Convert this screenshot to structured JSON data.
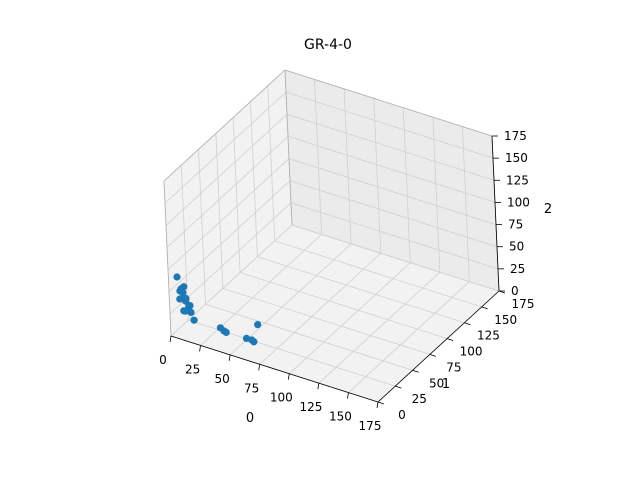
{
  "chart_data": {
    "type": "scatter3d",
    "title": "GR-4-0",
    "xlabel": "0",
    "ylabel": "1",
    "zlabel": "2",
    "xlim": [
      0,
      175
    ],
    "ylim": [
      0,
      175
    ],
    "zlim": [
      0,
      175
    ],
    "ticks": [
      0,
      25,
      50,
      75,
      100,
      125,
      150,
      175
    ],
    "grid": true,
    "marker_color": "#1f77b4",
    "points": [
      {
        "x": 0.0,
        "y": 12.1,
        "z": 58.0
      },
      {
        "x": 4.2,
        "y": 14.1,
        "z": 47.3
      },
      {
        "x": 1.5,
        "y": 14.4,
        "z": 43.5
      },
      {
        "x": 0.3,
        "y": 14.7,
        "z": 40.4
      },
      {
        "x": 1.2,
        "y": 17.3,
        "z": 37.0
      },
      {
        "x": 5.0,
        "y": 15.1,
        "z": 33.7
      },
      {
        "x": 2.3,
        "y": 16.3,
        "z": 30.9
      },
      {
        "x": 0.6,
        "y": 13.6,
        "z": 32.3
      },
      {
        "x": 3.6,
        "y": 16.9,
        "z": 28.7
      },
      {
        "x": 7.8,
        "y": 15.7,
        "z": 26.4
      },
      {
        "x": 5.9,
        "y": 17.0,
        "z": 23.4
      },
      {
        "x": 2.9,
        "y": 14.7,
        "z": 19.2
      },
      {
        "x": 6.3,
        "y": 19.1,
        "z": 15.6
      },
      {
        "x": 2.6,
        "y": 17.1,
        "z": 16.9
      },
      {
        "x": 9.6,
        "y": 17.5,
        "z": 9.4
      },
      {
        "x": 30.8,
        "y": 19.2,
        "z": 8.6
      },
      {
        "x": 32.6,
        "y": 20.9,
        "z": 4.8
      },
      {
        "x": 33.8,
        "y": 22.1,
        "z": 2.6
      },
      {
        "x": 50.9,
        "y": 22.3,
        "z": 3.0
      },
      {
        "x": 54.1,
        "y": 24.3,
        "z": 1.1
      },
      {
        "x": 56.3,
        "y": 23.6,
        "z": 0.5
      },
      {
        "x": 50.7,
        "y": 39.0,
        "z": 6.5
      }
    ]
  }
}
